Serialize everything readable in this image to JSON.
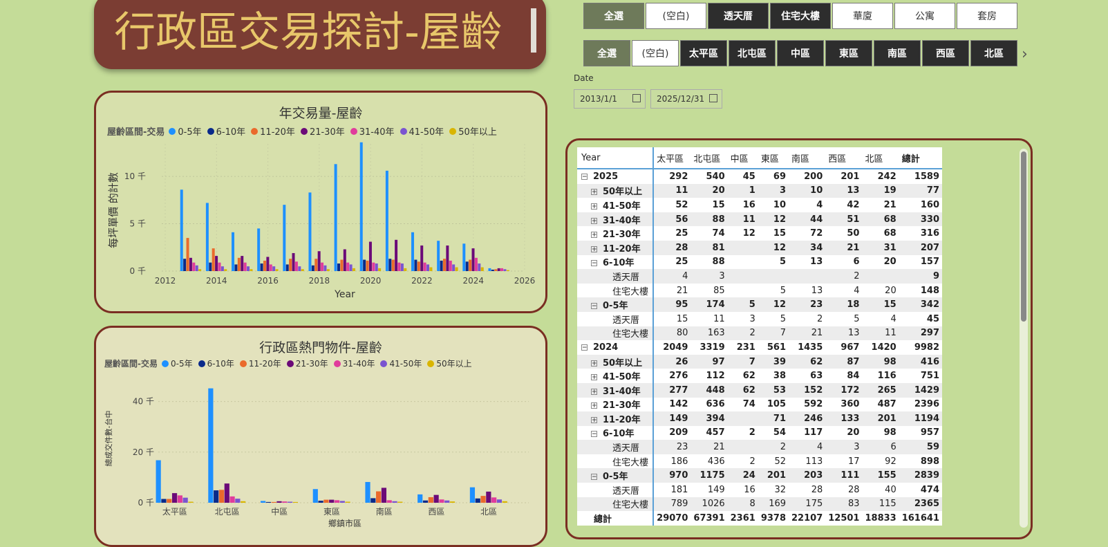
{
  "title": "行政區交易探討-屋齡",
  "type_slicer": [
    {
      "label": "全選",
      "state": "sel",
      "w": 88
    },
    {
      "label": "(空白)",
      "state": "white",
      "w": 88
    },
    {
      "label": "透天厝",
      "state": "dark",
      "w": 88
    },
    {
      "label": "住宅大樓",
      "state": "dark",
      "w": 88
    },
    {
      "label": "華廈",
      "state": "white",
      "w": 88
    },
    {
      "label": "公寓",
      "state": "white",
      "w": 88
    },
    {
      "label": "套房",
      "state": "white",
      "w": 88
    }
  ],
  "district_slicer": [
    {
      "label": "全選",
      "state": "sel",
      "w": 68
    },
    {
      "label": "(空白)",
      "state": "white",
      "w": 68
    },
    {
      "label": "太平區",
      "state": "dark",
      "w": 68
    },
    {
      "label": "北屯區",
      "state": "dark",
      "w": 68
    },
    {
      "label": "中區",
      "state": "dark",
      "w": 68
    },
    {
      "label": "東區",
      "state": "dark",
      "w": 68
    },
    {
      "label": "南區",
      "state": "dark",
      "w": 68
    },
    {
      "label": "西區",
      "state": "dark",
      "w": 68
    },
    {
      "label": "北區",
      "state": "dark",
      "w": 68
    }
  ],
  "date": {
    "label": "Date",
    "start": "2013/1/1",
    "end": "2025/12/31"
  },
  "colors": {
    "series": [
      "#1e90ff",
      "#0a2a8a",
      "#ea6a2c",
      "#6b0a78",
      "#e03c9c",
      "#7a54d0",
      "#d9b500"
    ]
  },
  "legend": {
    "title": "屋齡區間-交易",
    "items": [
      "0-5年",
      "6-10年",
      "11-20年",
      "21-30年",
      "31-40年",
      "41-50年",
      "50年以上"
    ]
  },
  "chart_data": [
    {
      "type": "bar",
      "title": "年交易量-屋齡",
      "xlabel": "Year",
      "ylabel": "每坪單價 的計數",
      "x_ticks": [
        "2012",
        "2014",
        "2016",
        "2018",
        "2020",
        "2022",
        "2024",
        "2026"
      ],
      "y_ticks": [
        "0 千",
        "5 千",
        "10 千"
      ],
      "xlim": [
        2012,
        2026
      ],
      "ylim": [
        0,
        13
      ],
      "categories": [
        2013,
        2014,
        2015,
        2016,
        2017,
        2018,
        2019,
        2020,
        2021,
        2022,
        2023,
        2024,
        2025
      ],
      "series": [
        {
          "name": "0-5年",
          "values": [
            8.6,
            7.2,
            4.1,
            4.5,
            7.0,
            8.3,
            11.3,
            13.6,
            10.6,
            4.1,
            3.2,
            2.9,
            0.3
          ]
        },
        {
          "name": "6-10年",
          "values": [
            1.3,
            0.9,
            0.7,
            0.8,
            0.7,
            0.6,
            0.8,
            1.2,
            1.3,
            1.2,
            1.1,
            1.0,
            0.15
          ]
        },
        {
          "name": "11-20年",
          "values": [
            3.5,
            2.4,
            1.4,
            1.1,
            1.3,
            1.3,
            1.2,
            1.1,
            1.2,
            1.0,
            1.3,
            1.2,
            0.2
          ]
        },
        {
          "name": "21-30年",
          "values": [
            1.4,
            1.6,
            1.6,
            1.5,
            1.9,
            2.1,
            2.3,
            3.1,
            3.3,
            2.7,
            2.7,
            2.4,
            0.3
          ]
        },
        {
          "name": "31-40年",
          "values": [
            0.9,
            0.9,
            0.9,
            0.7,
            1.0,
            0.9,
            0.9,
            0.9,
            0.9,
            0.9,
            1.1,
            1.4,
            0.3
          ]
        },
        {
          "name": "41-50年",
          "values": [
            0.6,
            0.5,
            0.5,
            0.5,
            0.5,
            0.6,
            0.7,
            0.8,
            0.8,
            0.7,
            0.7,
            0.8,
            0.2
          ]
        },
        {
          "name": "50年以上",
          "values": [
            0.2,
            0.2,
            0.2,
            0.2,
            0.2,
            0.2,
            0.3,
            0.3,
            0.3,
            0.4,
            0.4,
            0.4,
            0.1
          ]
        }
      ]
    },
    {
      "type": "bar",
      "title": "行政區熱門物件-屋齡",
      "xlabel": "鄉鎮市區",
      "ylabel": "總成交件數-台中",
      "y_ticks": [
        "0 千",
        "20 千",
        "40 千"
      ],
      "ylim": [
        0,
        50
      ],
      "categories": [
        "太平區",
        "北屯區",
        "中區",
        "東區",
        "南區",
        "西區",
        "北區"
      ],
      "series": [
        {
          "name": "0-5年",
          "values": [
            16.8,
            45.2,
            0.7,
            5.4,
            8.2,
            3.3,
            6.1
          ]
        },
        {
          "name": "6-10年",
          "values": [
            1.5,
            4.9,
            0.3,
            0.8,
            1.8,
            0.9,
            1.7
          ]
        },
        {
          "name": "11-20年",
          "values": [
            1.5,
            5.1,
            0.3,
            1.2,
            4.5,
            2.2,
            2.7
          ]
        },
        {
          "name": "21-30年",
          "values": [
            3.8,
            7.6,
            0.6,
            1.2,
            5.9,
            3.1,
            4.4
          ]
        },
        {
          "name": "31-40年",
          "values": [
            2.9,
            2.5,
            0.5,
            1.0,
            1.0,
            1.3,
            2.1
          ]
        },
        {
          "name": "41-50年",
          "values": [
            2.0,
            1.6,
            0.4,
            0.7,
            0.6,
            0.9,
            1.3
          ]
        },
        {
          "name": "50年以上",
          "values": [
            0.4,
            0.6,
            0.3,
            0.4,
            0.4,
            0.5,
            0.6
          ]
        }
      ]
    }
  ],
  "table": {
    "columns": [
      "Year",
      "太平區",
      "北屯區",
      "中區",
      "東區",
      "南區",
      "西區",
      "北區",
      "總計"
    ],
    "rows": [
      {
        "indent": 0,
        "exp": "minus",
        "bold": true,
        "label": "2025",
        "vals": [
          "292",
          "540",
          "45",
          "69",
          "200",
          "201",
          "242",
          "1589"
        ]
      },
      {
        "indent": 1,
        "exp": "plus",
        "bold": true,
        "label": "50年以上",
        "vals": [
          "11",
          "20",
          "1",
          "3",
          "10",
          "13",
          "19",
          "77"
        ]
      },
      {
        "indent": 1,
        "exp": "plus",
        "bold": true,
        "label": "41-50年",
        "vals": [
          "52",
          "15",
          "16",
          "10",
          "4",
          "42",
          "21",
          "160"
        ]
      },
      {
        "indent": 1,
        "exp": "plus",
        "bold": true,
        "label": "31-40年",
        "vals": [
          "56",
          "88",
          "11",
          "12",
          "44",
          "51",
          "68",
          "330"
        ]
      },
      {
        "indent": 1,
        "exp": "plus",
        "bold": true,
        "label": "21-30年",
        "vals": [
          "25",
          "74",
          "12",
          "15",
          "72",
          "50",
          "68",
          "316"
        ]
      },
      {
        "indent": 1,
        "exp": "plus",
        "bold": true,
        "label": "11-20年",
        "vals": [
          "28",
          "81",
          "",
          "12",
          "34",
          "21",
          "31",
          "207"
        ]
      },
      {
        "indent": 1,
        "exp": "minus",
        "bold": true,
        "label": "6-10年",
        "vals": [
          "25",
          "88",
          "",
          "5",
          "13",
          "6",
          "20",
          "157"
        ]
      },
      {
        "indent": 2,
        "exp": "",
        "bold": false,
        "label": "透天厝",
        "vals": [
          "4",
          "3",
          "",
          "",
          "",
          "2",
          "",
          "9"
        ]
      },
      {
        "indent": 2,
        "exp": "",
        "bold": false,
        "label": "住宅大樓",
        "vals": [
          "21",
          "85",
          "",
          "5",
          "13",
          "4",
          "20",
          "148"
        ]
      },
      {
        "indent": 1,
        "exp": "minus",
        "bold": true,
        "label": "0-5年",
        "vals": [
          "95",
          "174",
          "5",
          "12",
          "23",
          "18",
          "15",
          "342"
        ]
      },
      {
        "indent": 2,
        "exp": "",
        "bold": false,
        "label": "透天厝",
        "vals": [
          "15",
          "11",
          "3",
          "5",
          "2",
          "5",
          "4",
          "45"
        ]
      },
      {
        "indent": 2,
        "exp": "",
        "bold": false,
        "label": "住宅大樓",
        "vals": [
          "80",
          "163",
          "2",
          "7",
          "21",
          "13",
          "11",
          "297"
        ]
      },
      {
        "indent": 0,
        "exp": "minus",
        "bold": true,
        "label": "2024",
        "vals": [
          "2049",
          "3319",
          "231",
          "561",
          "1435",
          "967",
          "1420",
          "9982"
        ]
      },
      {
        "indent": 1,
        "exp": "plus",
        "bold": true,
        "label": "50年以上",
        "vals": [
          "26",
          "97",
          "7",
          "39",
          "62",
          "87",
          "98",
          "416"
        ]
      },
      {
        "indent": 1,
        "exp": "plus",
        "bold": true,
        "label": "41-50年",
        "vals": [
          "276",
          "112",
          "62",
          "38",
          "63",
          "84",
          "116",
          "751"
        ]
      },
      {
        "indent": 1,
        "exp": "plus",
        "bold": true,
        "label": "31-40年",
        "vals": [
          "277",
          "448",
          "62",
          "53",
          "152",
          "172",
          "265",
          "1429"
        ]
      },
      {
        "indent": 1,
        "exp": "plus",
        "bold": true,
        "label": "21-30年",
        "vals": [
          "142",
          "636",
          "74",
          "105",
          "592",
          "360",
          "487",
          "2396"
        ]
      },
      {
        "indent": 1,
        "exp": "plus",
        "bold": true,
        "label": "11-20年",
        "vals": [
          "149",
          "394",
          "",
          "71",
          "246",
          "133",
          "201",
          "1194"
        ]
      },
      {
        "indent": 1,
        "exp": "minus",
        "bold": true,
        "label": "6-10年",
        "vals": [
          "209",
          "457",
          "2",
          "54",
          "117",
          "20",
          "98",
          "957"
        ]
      },
      {
        "indent": 2,
        "exp": "",
        "bold": false,
        "label": "透天厝",
        "vals": [
          "23",
          "21",
          "",
          "2",
          "4",
          "3",
          "6",
          "59"
        ]
      },
      {
        "indent": 2,
        "exp": "",
        "bold": false,
        "label": "住宅大樓",
        "vals": [
          "186",
          "436",
          "2",
          "52",
          "113",
          "17",
          "92",
          "898"
        ]
      },
      {
        "indent": 1,
        "exp": "minus",
        "bold": true,
        "label": "0-5年",
        "vals": [
          "970",
          "1175",
          "24",
          "201",
          "203",
          "111",
          "155",
          "2839"
        ]
      },
      {
        "indent": 2,
        "exp": "",
        "bold": false,
        "label": "透天厝",
        "vals": [
          "181",
          "149",
          "16",
          "32",
          "28",
          "28",
          "40",
          "474"
        ]
      },
      {
        "indent": 2,
        "exp": "",
        "bold": false,
        "label": "住宅大樓",
        "vals": [
          "789",
          "1026",
          "8",
          "169",
          "175",
          "83",
          "115",
          "2365"
        ]
      },
      {
        "indent": 0,
        "exp": "",
        "bold": true,
        "label": "總計",
        "vals": [
          "29070",
          "67391",
          "2361",
          "9378",
          "22107",
          "12501",
          "18833",
          "161641"
        ]
      }
    ]
  }
}
